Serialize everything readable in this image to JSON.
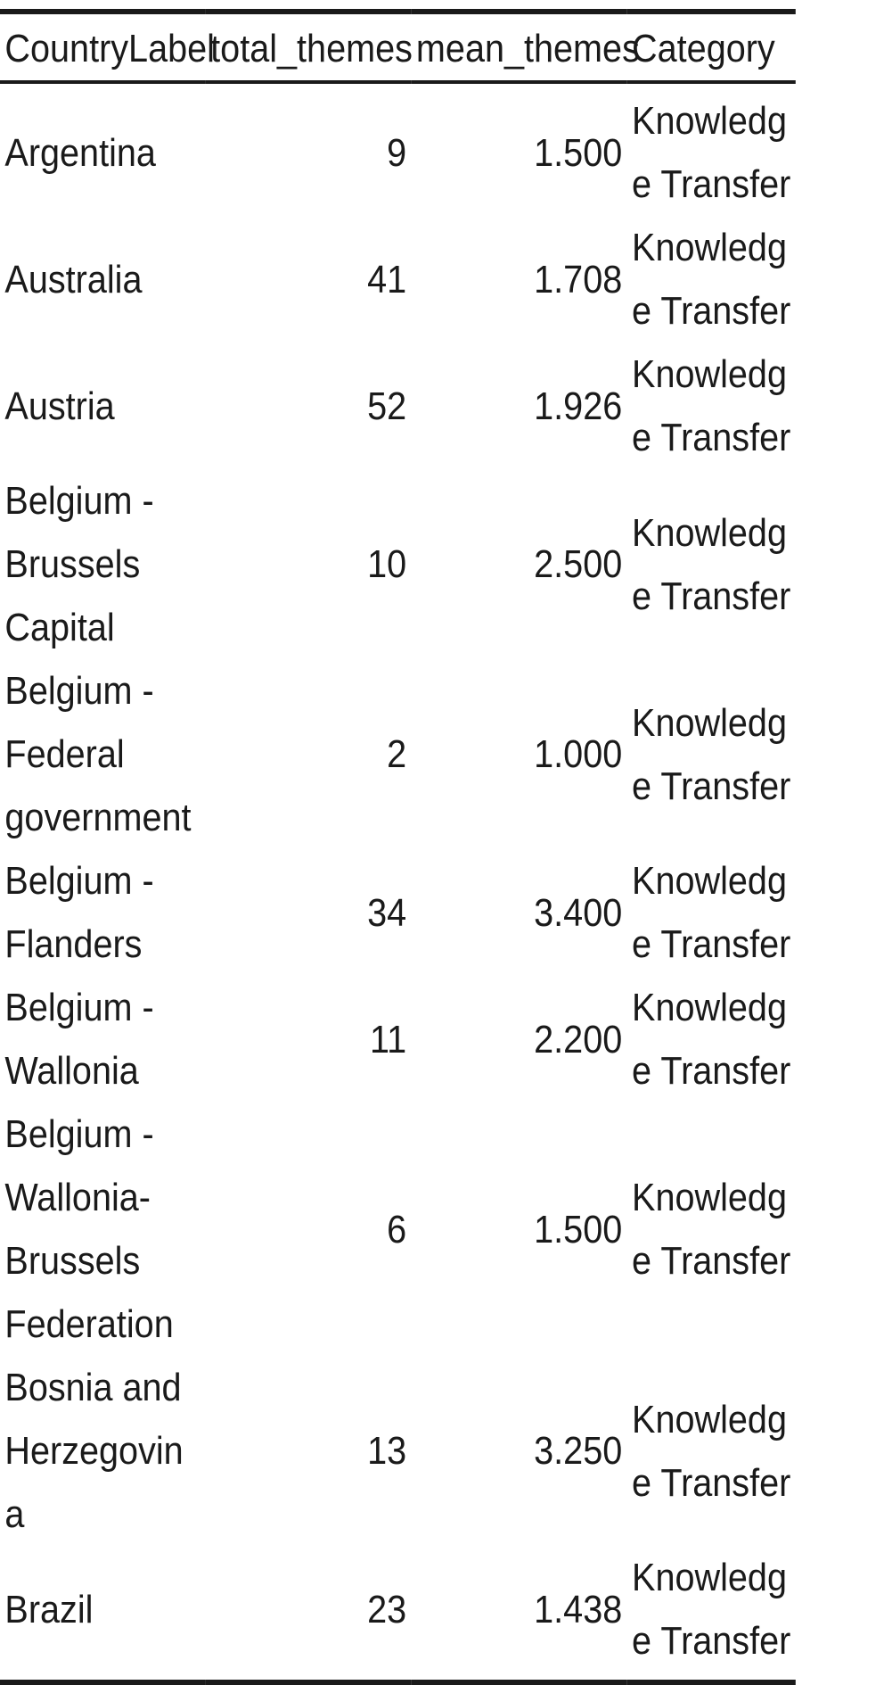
{
  "table": {
    "columns": [
      "CountryLabel",
      "total_themes",
      "mean_themes",
      "Category"
    ],
    "rows": [
      {
        "country": "Argentina",
        "total": "9",
        "mean": "1.500",
        "category": "Knowledge Transfer"
      },
      {
        "country": "Australia",
        "total": "41",
        "mean": "1.708",
        "category": "Knowledge Transfer"
      },
      {
        "country": "Austria",
        "total": "52",
        "mean": "1.926",
        "category": "Knowledge Transfer"
      },
      {
        "country": "Belgium - Brussels Capital",
        "total": "10",
        "mean": "2.500",
        "category": "Knowledge Transfer"
      },
      {
        "country": "Belgium - Federal government",
        "total": "2",
        "mean": "1.000",
        "category": "Knowledge Transfer"
      },
      {
        "country": "Belgium - Flanders",
        "total": "34",
        "mean": "3.400",
        "category": "Knowledge Transfer"
      },
      {
        "country": "Belgium - Wallonia",
        "total": "11",
        "mean": "2.200",
        "category": "Knowledge Transfer"
      },
      {
        "country": "Belgium - Wallonia-Brussels Federation",
        "total": "6",
        "mean": "1.500",
        "category": "Knowledge Transfer"
      },
      {
        "country": "Bosnia and Herzegovina",
        "total": "13",
        "mean": "3.250",
        "category": "Knowledge Transfer"
      },
      {
        "country": "Brazil",
        "total": "23",
        "mean": "1.438",
        "category": "Knowledge Transfer"
      }
    ]
  }
}
